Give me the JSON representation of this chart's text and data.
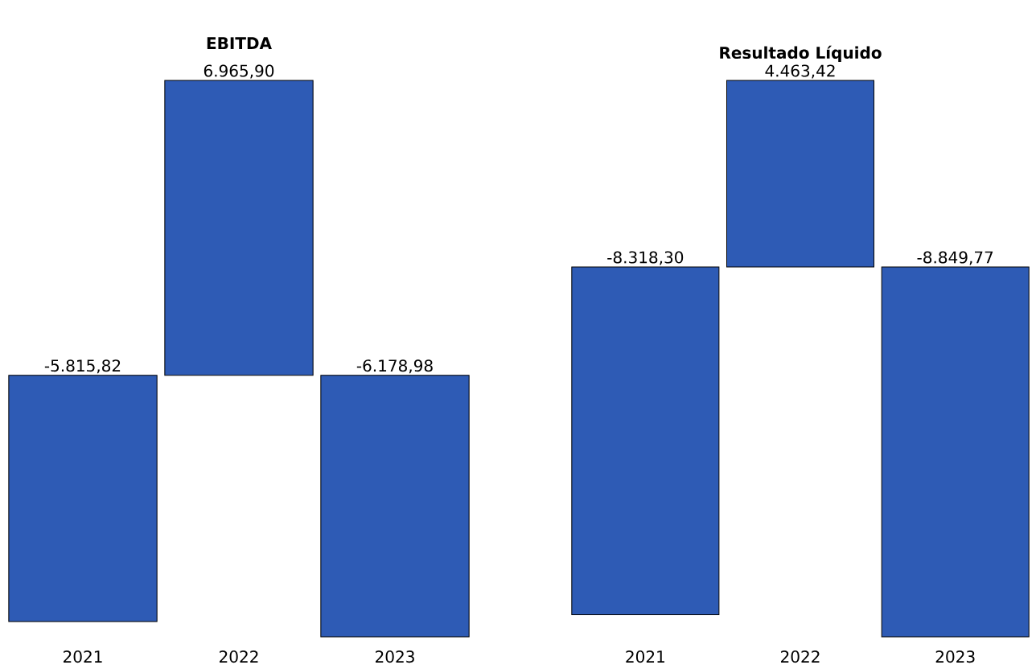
{
  "chart_data": [
    {
      "type": "bar",
      "title": "EBITDA",
      "categories": [
        "2021",
        "2022",
        "2023"
      ],
      "values": [
        -5815.82,
        6965.9,
        -6178.98
      ],
      "value_labels": [
        "-5.815,82",
        "6.965,90",
        "-6.178,98"
      ],
      "color": "#2e5bb5",
      "tick_labels": "x"
    },
    {
      "type": "bar",
      "title": "Resultado Líquido",
      "categories": [
        "2021",
        "2022",
        "2023"
      ],
      "values": [
        -8318.3,
        4463.42,
        -8849.77
      ],
      "value_labels": [
        "-8.318,30",
        "4.463,42",
        "-8.849,77"
      ],
      "color": "#2e5bb5",
      "tick_labels": "x"
    }
  ]
}
